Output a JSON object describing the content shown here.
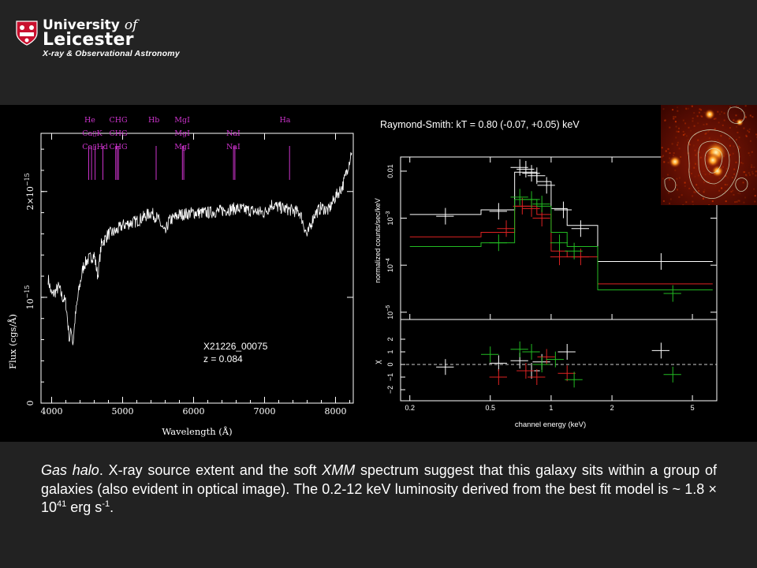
{
  "header": {
    "university_prefix": "University",
    "university_of": "of",
    "university_name": "Leicester",
    "group": "X-ray & Observational Astronomy"
  },
  "optical_spectrum": {
    "object_id": "X21226_00075",
    "redshift": "z = 0.084",
    "xlabel": "Wavelength (Å)",
    "ylabel": "Flux (cgs/Å)",
    "x_ticks": [
      "4000",
      "5000",
      "6000",
      "7000",
      "8000"
    ],
    "y_ticks": [
      "0",
      "10",
      "2×10"
    ],
    "y_tick_exp": "−15",
    "lines_row1": [
      "He",
      "CHG",
      "Hb",
      "MgI",
      "Ha"
    ],
    "lines_row2": [
      "Ca▯K",
      "CHG",
      "MgI",
      "NaI"
    ],
    "lines_row3": [
      "Ca▯Hd",
      "CHG",
      "MgI",
      "NaI"
    ]
  },
  "xray_spectrum": {
    "title": "Raymond-Smith: kT = 0.80 (-0.07, +0.05) keV",
    "xlabel": "channel energy (keV)",
    "ylabel_top": "normalized counts/sec/keV",
    "ylabel_bottom": "χ",
    "x_ticks": [
      "0.2",
      "0.5",
      "1",
      "2",
      "5"
    ],
    "y_ticks_top": [
      "0.01",
      "10",
      "10",
      "10"
    ],
    "y_ticks_top_exp": [
      "",
      "−3",
      "−4",
      "−5"
    ],
    "y_ticks_bottom": [
      "2",
      "1",
      "0",
      "−1",
      "−2"
    ]
  },
  "caption": {
    "lead": "Gas halo",
    "part1": ". X-ray source extent and the soft ",
    "xmm": "XMM",
    "part2": " spectrum suggest that this galaxy sits within a group of galaxies (also evident in optical image). The 0.2-12 keV luminosity derived from the best fit model is ~ 1.8 × 10",
    "exp1": "41",
    "part3": " erg s",
    "exp2": "-1",
    "part4": "."
  },
  "colors": {
    "background": "#222222",
    "plot_bg": "#000000",
    "line_marker": "#cc33cc",
    "series_white": "#ffffff",
    "series_red": "#dd2222",
    "series_green": "#22bb22"
  }
}
